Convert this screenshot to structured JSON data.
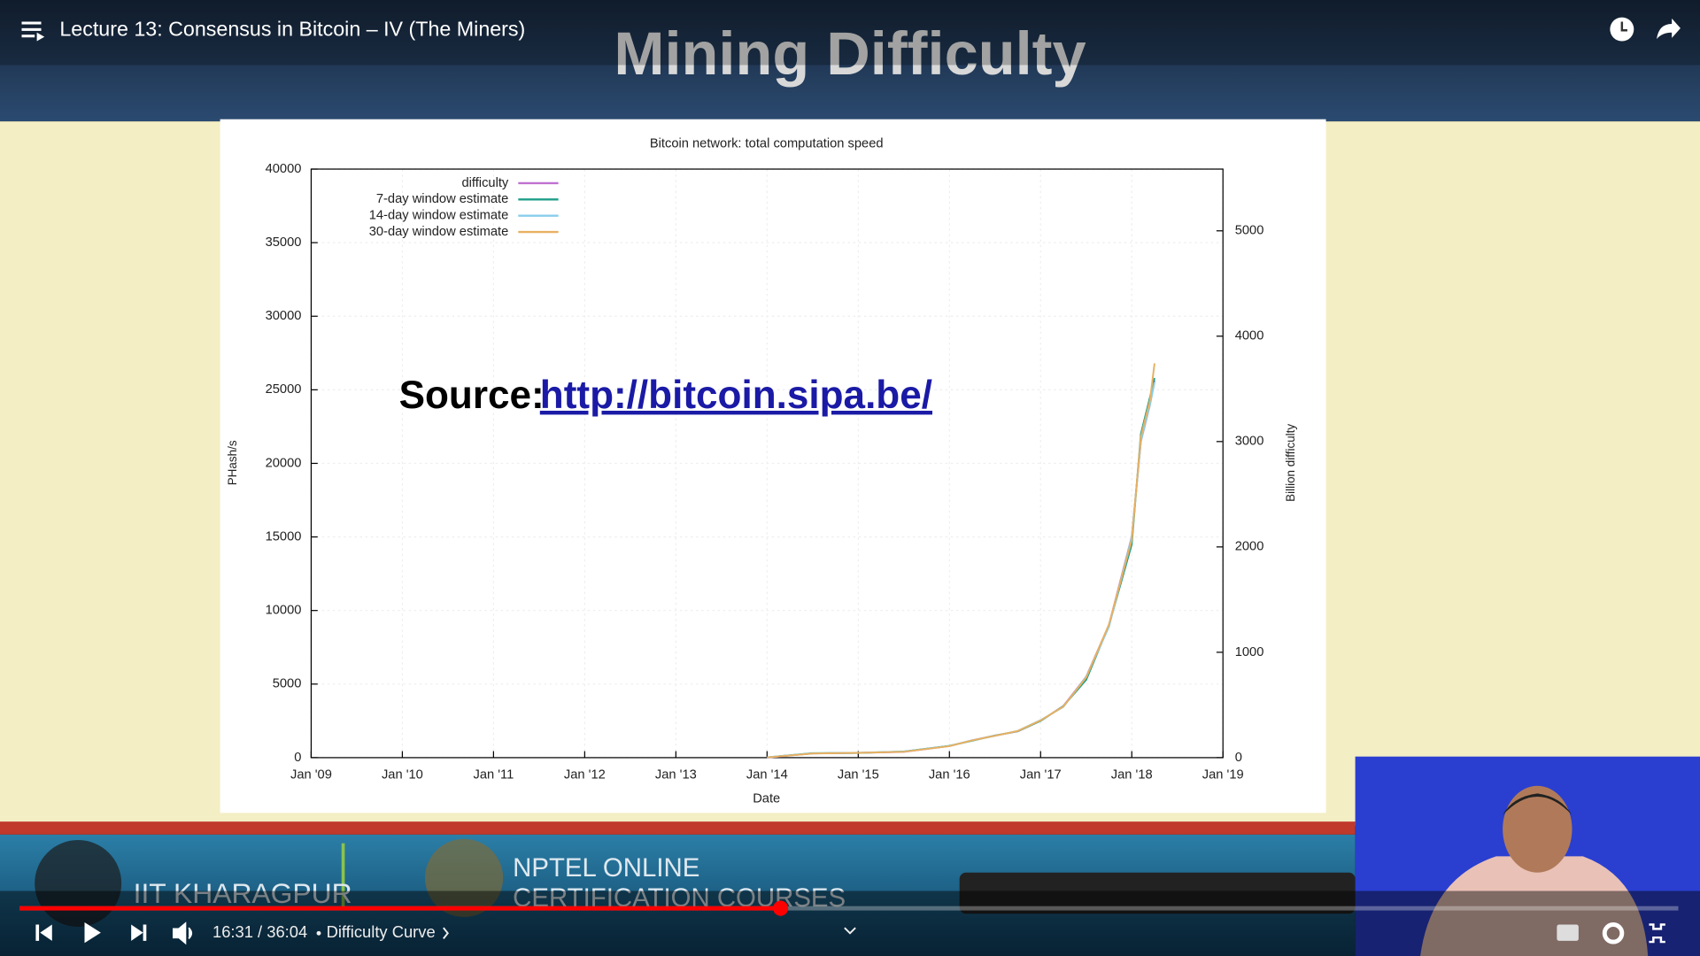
{
  "player": {
    "video_title": "Lecture 13: Consensus in Bitcoin – IV (The Miners)",
    "time": "16:31 / 36:04",
    "chapter": "Difficulty Curve"
  },
  "slide": {
    "title": "Mining Difficulty",
    "source_label": "Source:",
    "source_url": "http://bitcoin.sipa.be/",
    "chart": {
      "type": "line",
      "title": "Bitcoin network: total computation speed",
      "x_label": "Date",
      "y_label": "PHash/s",
      "y2_label": "Billion difficulty",
      "x": [
        2014.0,
        2014.5,
        2015.0,
        2015.5,
        2016.0,
        2016.25,
        2016.5,
        2016.75,
        2017.0,
        2017.25,
        2017.5,
        2017.75,
        2018.0,
        2018.1,
        2018.2,
        2018.25
      ],
      "series": [
        {
          "name": "difficulty",
          "color": "#c070d0",
          "axis": "y2",
          "values": [
            0,
            40,
            45,
            55,
            110,
            165,
            210,
            250,
            350,
            490,
            770,
            1260,
            2100,
            3000,
            3350,
            3580
          ]
        },
        {
          "name": "7-day window estimate",
          "color": "#1f9e89",
          "values": [
            20,
            300,
            320,
            420,
            800,
            1150,
            1500,
            1800,
            2500,
            3500,
            5300,
            9000,
            14500,
            22000,
            24500,
            25800
          ]
        },
        {
          "name": "14-day window estimate",
          "color": "#87ceeb",
          "values": [
            20,
            290,
            330,
            410,
            790,
            1180,
            1480,
            1820,
            2550,
            3450,
            5500,
            8900,
            15000,
            21500,
            24000,
            25500
          ]
        },
        {
          "name": "30-day window estimate",
          "color": "#e8b060",
          "values": [
            15,
            280,
            325,
            400,
            780,
            1170,
            1490,
            1810,
            2530,
            3480,
            5450,
            9050,
            14800,
            21800,
            24300,
            26800
          ]
        }
      ],
      "xlim": [
        2009,
        2019
      ],
      "xticks": [
        {
          "value": 2009,
          "label": "Jan '09"
        },
        {
          "value": 2010,
          "label": "Jan '10"
        },
        {
          "value": 2011,
          "label": "Jan '11"
        },
        {
          "value": 2012,
          "label": "Jan '12"
        },
        {
          "value": 2013,
          "label": "Jan '13"
        },
        {
          "value": 2014,
          "label": "Jan '14"
        },
        {
          "value": 2015,
          "label": "Jan '15"
        },
        {
          "value": 2016,
          "label": "Jan '16"
        },
        {
          "value": 2017,
          "label": "Jan '17"
        },
        {
          "value": 2018,
          "label": "Jan '18"
        },
        {
          "value": 2019,
          "label": "Jan '19"
        }
      ],
      "ylim": [
        0,
        40000
      ],
      "yticks": [
        0,
        5000,
        10000,
        15000,
        20000,
        25000,
        30000,
        35000,
        40000
      ],
      "y2lim": [
        0,
        5586
      ],
      "y2ticks": [
        0,
        1000,
        2000,
        3000,
        4000,
        5000
      ],
      "grid": true,
      "legend": "upper-left"
    }
  },
  "banner": {
    "institute": "IIT KHARAGPUR",
    "nptel_line1": "NPTEL ONLINE",
    "nptel_line2": "CERTIFICATION COURSES"
  }
}
